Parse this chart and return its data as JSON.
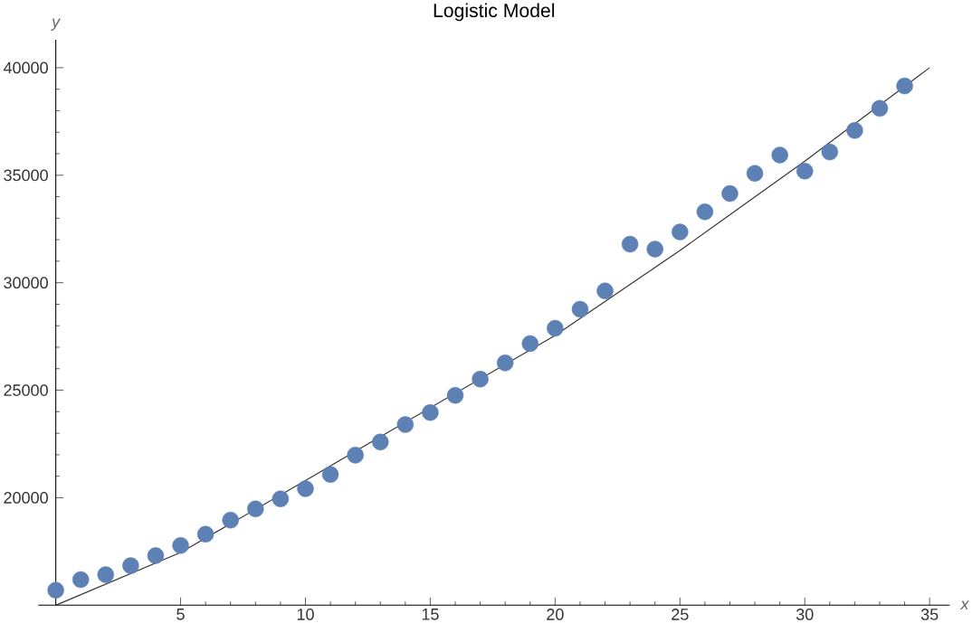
{
  "chart_data": {
    "type": "scatter",
    "title": "Logistic Model",
    "xlabel": "x",
    "ylabel": "y",
    "xlim": [
      -0.7,
      35.8
    ],
    "ylim": [
      15000,
      41300
    ],
    "xticks": [
      5,
      10,
      15,
      20,
      25,
      30,
      35
    ],
    "yticks": [
      20000,
      25000,
      30000,
      35000,
      40000
    ],
    "grid": false,
    "series": [
      {
        "type": "scatter",
        "marker": "circle",
        "color": "#5e81b5",
        "x": [
          0,
          1,
          2,
          3,
          4,
          5,
          6,
          7,
          8,
          9,
          10,
          11,
          12,
          13,
          14,
          15,
          16,
          17,
          18,
          19,
          20,
          21,
          22,
          23,
          24,
          25,
          26,
          27,
          28,
          29,
          30,
          31,
          32,
          33,
          34
        ],
        "values": [
          15700,
          16190,
          16420,
          16840,
          17310,
          17780,
          18300,
          18960,
          19480,
          19950,
          20420,
          21080,
          21980,
          22590,
          23400,
          23960,
          24760,
          25520,
          26270,
          27170,
          27880,
          28770,
          29620,
          31790,
          31560,
          32360,
          33300,
          34150,
          35090,
          35940,
          35190,
          36080,
          37080,
          38110,
          39150
        ]
      },
      {
        "type": "line",
        "marker": "none",
        "line_style": "solid",
        "color": "#333333",
        "x": [
          0,
          5,
          10,
          12.5,
          20,
          25,
          30,
          35
        ],
        "values": [
          15000,
          17450,
          20800,
          22500,
          27550,
          31500,
          35650,
          40000
        ]
      }
    ]
  }
}
